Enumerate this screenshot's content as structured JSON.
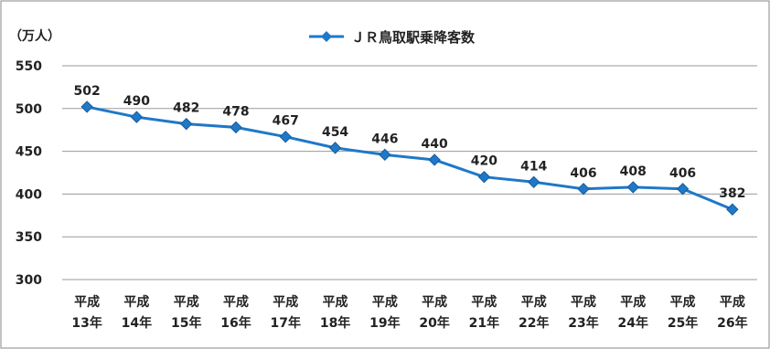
{
  "chart_data": {
    "type": "line",
    "unit_label": "（万人）",
    "categories": [
      [
        "平成",
        "13年"
      ],
      [
        "平成",
        "14年"
      ],
      [
        "平成",
        "15年"
      ],
      [
        "平成",
        "16年"
      ],
      [
        "平成",
        "17年"
      ],
      [
        "平成",
        "18年"
      ],
      [
        "平成",
        "19年"
      ],
      [
        "平成",
        "20年"
      ],
      [
        "平成",
        "21年"
      ],
      [
        "平成",
        "22年"
      ],
      [
        "平成",
        "23年"
      ],
      [
        "平成",
        "24年"
      ],
      [
        "平成",
        "25年"
      ],
      [
        "平成",
        "26年"
      ]
    ],
    "series": [
      {
        "name": "ＪＲ鳥取駅乗降客数",
        "values": [
          502,
          490,
          482,
          478,
          467,
          454,
          446,
          440,
          420,
          414,
          406,
          408,
          406,
          382
        ],
        "color": "#1f78c8"
      }
    ],
    "ylim": [
      300,
      550
    ],
    "yticks": [
      300,
      350,
      400,
      450,
      500,
      550
    ],
    "grid": true,
    "legend_position": "top-center",
    "show_data_labels": true
  }
}
